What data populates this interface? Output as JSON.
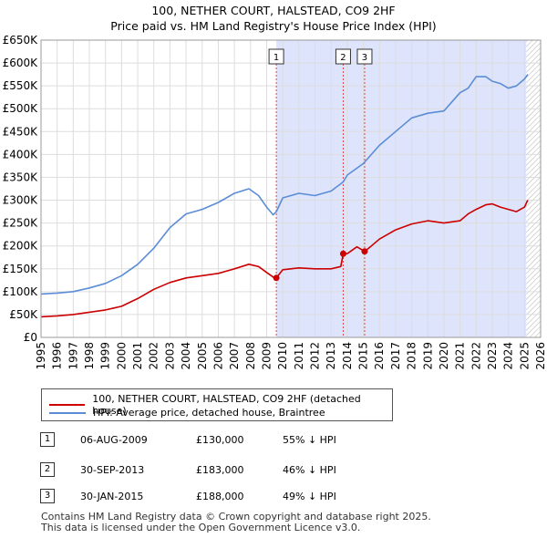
{
  "title_line1": "100, NETHER COURT, HALSTEAD, CO9 2HF",
  "title_line2": "Price paid vs. HM Land Registry's House Price Index (HPI)",
  "colors": {
    "property": "#cc0000",
    "hpi": "#5b8dd6",
    "shade": "#dde4fb",
    "grid": "#dddddd"
  },
  "chart_data": {
    "type": "line",
    "xlim": [
      1995,
      2026
    ],
    "ylim": [
      0,
      650000
    ],
    "x_ticks": [
      "1995",
      "1996",
      "1997",
      "1998",
      "1999",
      "2000",
      "2001",
      "2002",
      "2003",
      "2004",
      "2005",
      "2006",
      "2007",
      "2008",
      "2009",
      "2010",
      "2011",
      "2012",
      "2013",
      "2014",
      "2015",
      "2016",
      "2017",
      "2018",
      "2019",
      "2020",
      "2021",
      "2022",
      "2023",
      "2024",
      "2025",
      "2026"
    ],
    "y_ticks": [
      {
        "value": 0,
        "label": "£0"
      },
      {
        "value": 50000,
        "label": "£50K"
      },
      {
        "value": 100000,
        "label": "£100K"
      },
      {
        "value": 150000,
        "label": "£150K"
      },
      {
        "value": 200000,
        "label": "£200K"
      },
      {
        "value": 250000,
        "label": "£250K"
      },
      {
        "value": 300000,
        "label": "£300K"
      },
      {
        "value": 350000,
        "label": "£350K"
      },
      {
        "value": 400000,
        "label": "£400K"
      },
      {
        "value": 450000,
        "label": "£450K"
      },
      {
        "value": 500000,
        "label": "£500K"
      },
      {
        "value": 550000,
        "label": "£550K"
      },
      {
        "value": 600000,
        "label": "£600K"
      },
      {
        "value": 650000,
        "label": "£650K"
      }
    ],
    "shaded_range": [
      2009.6,
      2025.1
    ],
    "hatch_from": 2025.1,
    "series": [
      {
        "name": "100, NETHER COURT, HALSTEAD, CO9 2HF (detached house)",
        "color": "#cc0000",
        "x": [
          1995,
          1996,
          1997,
          1998,
          1999,
          2000,
          2001,
          2002,
          2003,
          2004,
          2005,
          2006,
          2007,
          2007.9,
          2008.5,
          2009,
          2009.4,
          2009.6,
          2010,
          2011,
          2012,
          2013,
          2013.6,
          2013.75,
          2014,
          2014.6,
          2015.08,
          2015.5,
          2016,
          2017,
          2018,
          2019,
          2020,
          2021,
          2021.5,
          2022,
          2022.6,
          2023,
          2023.5,
          2024,
          2024.5,
          2025,
          2025.2
        ],
        "y": [
          45000,
          47000,
          50000,
          55000,
          60000,
          68000,
          85000,
          105000,
          120000,
          130000,
          135000,
          140000,
          150000,
          160000,
          155000,
          142000,
          132000,
          130000,
          148000,
          152000,
          150000,
          150000,
          155000,
          183000,
          183000,
          198000,
          188000,
          200000,
          215000,
          235000,
          248000,
          255000,
          250000,
          255000,
          270000,
          280000,
          290000,
          292000,
          285000,
          280000,
          275000,
          285000,
          300000
        ]
      },
      {
        "name": "HPI: Average price, detached house, Braintree",
        "color": "#5b8dd6",
        "x": [
          1995,
          1996,
          1997,
          1998,
          1999,
          2000,
          2001,
          2002,
          2003,
          2004,
          2005,
          2006,
          2007,
          2007.9,
          2008.5,
          2009,
          2009.4,
          2009.6,
          2010,
          2011,
          2012,
          2013,
          2013.75,
          2014,
          2015,
          2016,
          2017,
          2018,
          2019,
          2020,
          2021,
          2021.5,
          2022,
          2022.6,
          2023,
          2023.5,
          2024,
          2024.5,
          2025,
          2025.2
        ],
        "y": [
          95000,
          97000,
          100000,
          108000,
          118000,
          135000,
          160000,
          195000,
          240000,
          270000,
          280000,
          295000,
          315000,
          325000,
          310000,
          285000,
          268000,
          275000,
          305000,
          315000,
          310000,
          320000,
          340000,
          355000,
          380000,
          420000,
          450000,
          480000,
          490000,
          495000,
          535000,
          545000,
          570000,
          570000,
          560000,
          555000,
          545000,
          550000,
          565000,
          575000
        ]
      }
    ],
    "sale_markers": [
      {
        "id": "1",
        "x": 2009.6,
        "y": 130000
      },
      {
        "id": "2",
        "x": 2013.75,
        "y": 183000
      },
      {
        "id": "3",
        "x": 2015.08,
        "y": 188000
      }
    ]
  },
  "legend": {
    "property": "100, NETHER COURT, HALSTEAD, CO9 2HF (detached house)",
    "hpi": "HPI: Average price, detached house, Braintree"
  },
  "transactions": [
    {
      "id": "1",
      "date": "06-AUG-2009",
      "price": "£130,000",
      "hpi": "55% ↓ HPI"
    },
    {
      "id": "2",
      "date": "30-SEP-2013",
      "price": "£183,000",
      "hpi": "46% ↓ HPI"
    },
    {
      "id": "3",
      "date": "30-JAN-2015",
      "price": "£188,000",
      "hpi": "49% ↓ HPI"
    }
  ],
  "footer": {
    "line1": "Contains HM Land Registry data © Crown copyright and database right 2025.",
    "line2": "This data is licensed under the Open Government Licence v3.0."
  }
}
